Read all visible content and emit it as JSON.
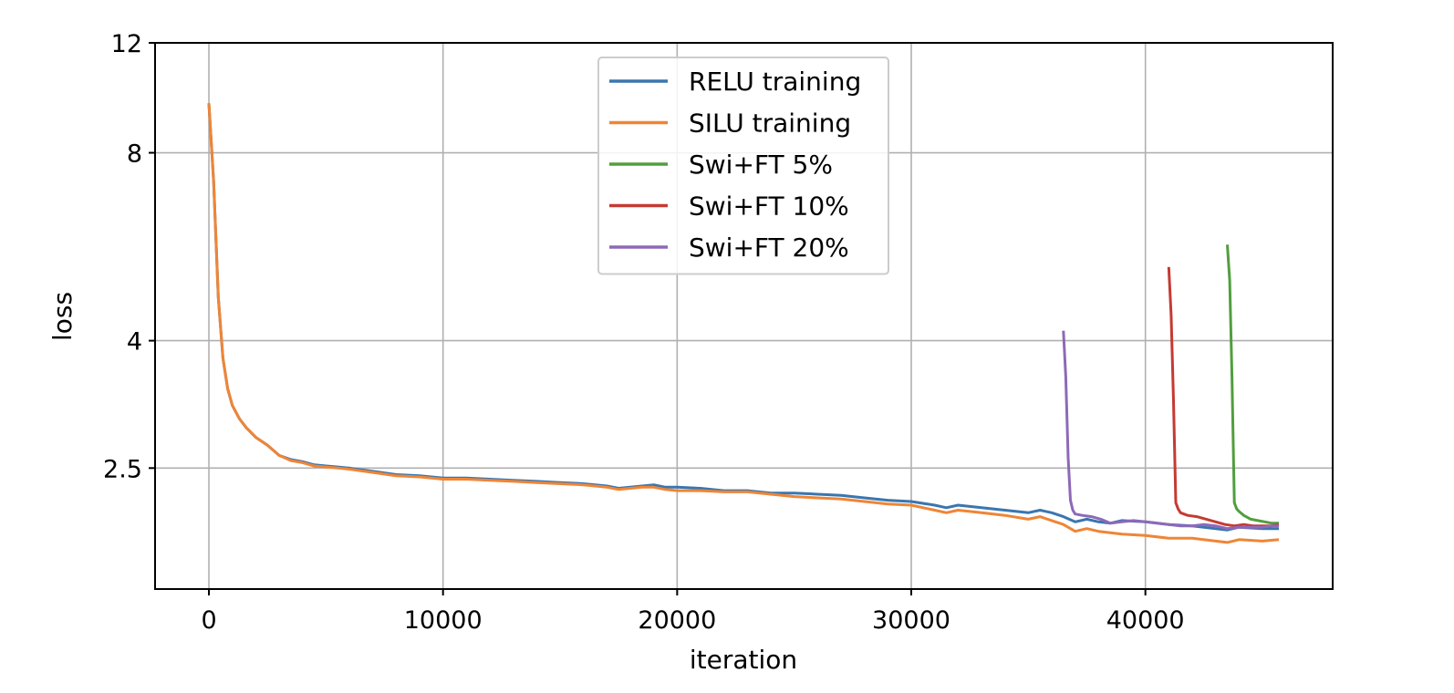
{
  "chart_data": {
    "type": "line",
    "title": "",
    "xlabel": "iteration",
    "ylabel": "loss",
    "yscale": "log",
    "xlim": [
      -2300,
      48000
    ],
    "ylim": [
      1.6,
      12
    ],
    "x_ticks": [
      0,
      10000,
      20000,
      30000,
      40000
    ],
    "x_tick_labels": [
      "0",
      "10000",
      "20000",
      "30000",
      "40000"
    ],
    "y_ticks": [
      2.5,
      4,
      8,
      12
    ],
    "y_tick_labels": [
      "2.5",
      "4",
      "8",
      "12"
    ],
    "grid": true,
    "legend_position": "upper-center",
    "series": [
      {
        "name": "RELU training",
        "color": "#3a76af",
        "x": [
          0,
          200,
          400,
          600,
          800,
          1000,
          1300,
          1600,
          2000,
          2500,
          3000,
          3500,
          4000,
          4500,
          5000,
          5500,
          6000,
          7000,
          8000,
          9000,
          10000,
          11000,
          12000,
          13000,
          14000,
          15000,
          16000,
          17000,
          17500,
          18000,
          18500,
          19000,
          19500,
          20000,
          21000,
          22000,
          23000,
          24000,
          25000,
          26000,
          27000,
          28000,
          29000,
          30000,
          31000,
          31500,
          32000,
          33000,
          34000,
          35000,
          35500,
          36000,
          36500,
          37000,
          37500,
          38000,
          38500,
          39000,
          40000,
          41000,
          42000,
          43000,
          43500,
          44000,
          45000,
          45700
        ],
        "y": [
          9.6,
          7.2,
          4.7,
          3.75,
          3.35,
          3.15,
          3.0,
          2.9,
          2.8,
          2.72,
          2.62,
          2.58,
          2.56,
          2.53,
          2.52,
          2.51,
          2.5,
          2.47,
          2.44,
          2.43,
          2.41,
          2.41,
          2.4,
          2.39,
          2.38,
          2.37,
          2.36,
          2.34,
          2.32,
          2.33,
          2.34,
          2.35,
          2.33,
          2.33,
          2.32,
          2.3,
          2.3,
          2.28,
          2.28,
          2.27,
          2.26,
          2.24,
          2.22,
          2.21,
          2.18,
          2.16,
          2.18,
          2.16,
          2.14,
          2.12,
          2.14,
          2.12,
          2.09,
          2.05,
          2.07,
          2.05,
          2.04,
          2.06,
          2.05,
          2.03,
          2.02,
          2.0,
          1.99,
          2.01,
          2.0,
          2.0
        ]
      },
      {
        "name": "SILU training",
        "color": "#ef8536",
        "x": [
          0,
          200,
          400,
          600,
          800,
          1000,
          1300,
          1600,
          2000,
          2500,
          3000,
          3500,
          4000,
          4500,
          5000,
          5500,
          6000,
          7000,
          8000,
          9000,
          10000,
          11000,
          12000,
          13000,
          14000,
          15000,
          16000,
          17000,
          17500,
          18000,
          18500,
          19000,
          19500,
          20000,
          21000,
          22000,
          23000,
          24000,
          25000,
          26000,
          27000,
          28000,
          29000,
          30000,
          31000,
          31500,
          32000,
          33000,
          34000,
          35000,
          35500,
          36000,
          36500,
          37000,
          37500,
          38000,
          38500,
          39000,
          40000,
          41000,
          42000,
          43000,
          43500,
          44000,
          45000,
          45700
        ],
        "y": [
          9.6,
          7.2,
          4.7,
          3.75,
          3.35,
          3.15,
          3.0,
          2.9,
          2.8,
          2.72,
          2.62,
          2.57,
          2.55,
          2.52,
          2.51,
          2.5,
          2.49,
          2.46,
          2.43,
          2.42,
          2.4,
          2.4,
          2.39,
          2.38,
          2.37,
          2.36,
          2.35,
          2.33,
          2.31,
          2.32,
          2.33,
          2.33,
          2.31,
          2.3,
          2.3,
          2.29,
          2.29,
          2.27,
          2.25,
          2.24,
          2.23,
          2.21,
          2.19,
          2.18,
          2.14,
          2.12,
          2.14,
          2.12,
          2.1,
          2.07,
          2.09,
          2.06,
          2.03,
          1.98,
          2.0,
          1.98,
          1.97,
          1.96,
          1.95,
          1.93,
          1.93,
          1.91,
          1.9,
          1.92,
          1.91,
          1.92
        ]
      },
      {
        "name": "Swi+FT 5%",
        "color": "#519e3e",
        "x": [
          43500,
          43600,
          43700,
          43800,
          43900,
          44000,
          44200,
          44500,
          44800,
          45100,
          45400,
          45700
        ],
        "y": [
          5.7,
          5.0,
          3.5,
          2.2,
          2.15,
          2.13,
          2.1,
          2.07,
          2.06,
          2.05,
          2.04,
          2.04
        ]
      },
      {
        "name": "Swi+FT 10%",
        "color": "#c53a32",
        "x": [
          41000,
          41100,
          41200,
          41300,
          41400,
          41500,
          41800,
          42200,
          42600,
          43000,
          43400,
          43800,
          44200,
          44600,
          45000,
          45400,
          45700
        ],
        "y": [
          5.25,
          4.4,
          3.2,
          2.2,
          2.15,
          2.12,
          2.1,
          2.09,
          2.07,
          2.05,
          2.03,
          2.02,
          2.03,
          2.02,
          2.02,
          2.02,
          2.03
        ]
      },
      {
        "name": "Swi+FT 20%",
        "color": "#8d69b8",
        "x": [
          36500,
          36600,
          36700,
          36800,
          36900,
          37000,
          37300,
          37700,
          38100,
          38500,
          39000,
          39500,
          40000,
          40500,
          41000,
          41500,
          42000,
          42500,
          43000,
          43500,
          44000,
          44500,
          45000,
          45400,
          45700
        ],
        "y": [
          4.15,
          3.5,
          2.6,
          2.22,
          2.14,
          2.11,
          2.1,
          2.09,
          2.07,
          2.04,
          2.05,
          2.06,
          2.05,
          2.04,
          2.03,
          2.02,
          2.02,
          2.03,
          2.02,
          2.0,
          2.01,
          2.01,
          2.01,
          2.02,
          2.02
        ]
      }
    ]
  }
}
